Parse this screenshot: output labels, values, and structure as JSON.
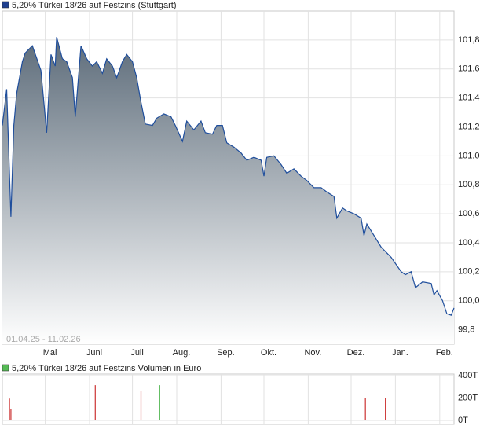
{
  "chart_data": [
    {
      "type": "line",
      "title": "5,20% Türkei 18/26 auf Festzins (Stuttgart)",
      "range_label": "01.04.25 - 11.02.26",
      "x": [
        "01.04.25",
        "04.04.25",
        "07.04.25",
        "09.04.25",
        "11.04.25",
        "15.04.25",
        "17.04.25",
        "22.04.25",
        "28.04.25",
        "02.05.25",
        "05.05.25",
        "08.05.25",
        "09.05.25",
        "13.05.25",
        "16.05.25",
        "20.05.25",
        "22.05.25",
        "26.05.25",
        "30.05.25",
        "03.06.25",
        "06.06.25",
        "10.06.25",
        "13.06.25",
        "17.06.25",
        "20.06.25",
        "24.06.25",
        "27.06.25",
        "01.07.25",
        "04.07.25",
        "07.07.25",
        "10.07.25",
        "15.07.25",
        "18.07.25",
        "23.07.25",
        "28.07.25",
        "31.07.25",
        "05.08.25",
        "08.08.25",
        "13.08.25",
        "18.08.25",
        "21.08.25",
        "26.08.25",
        "29.08.25",
        "02.09.25",
        "05.09.25",
        "10.09.25",
        "15.09.25",
        "19.09.25",
        "24.09.25",
        "29.09.25",
        "01.10.25",
        "03.10.25",
        "08.10.25",
        "13.10.25",
        "17.10.25",
        "22.10.25",
        "27.10.25",
        "31.10.25",
        "05.11.25",
        "10.11.25",
        "14.11.25",
        "19.11.25",
        "21.11.25",
        "25.11.25",
        "28.11.25",
        "03.12.25",
        "08.12.25",
        "10.12.25",
        "12.12.25",
        "17.12.25",
        "22.12.25",
        "29.12.25",
        "05.01.26",
        "08.01.26",
        "12.01.26",
        "15.01.26",
        "20.01.26",
        "26.01.26",
        "28.01.26",
        "30.01.26",
        "03.02.26",
        "06.02.26",
        "09.02.26",
        "11.02.26"
      ],
      "series": [
        {
          "color": "#1f4e9c",
          "area_color": "#5d6c7a",
          "values": [
            101.21,
            101.46,
            100.58,
            101.21,
            101.43,
            101.65,
            101.71,
            101.76,
            101.59,
            101.16,
            101.7,
            101.62,
            101.82,
            101.67,
            101.65,
            101.54,
            101.27,
            101.76,
            101.67,
            101.62,
            101.65,
            101.57,
            101.67,
            101.62,
            101.54,
            101.65,
            101.7,
            101.65,
            101.54,
            101.37,
            101.22,
            101.21,
            101.26,
            101.29,
            101.27,
            101.21,
            101.1,
            101.24,
            101.18,
            101.24,
            101.16,
            101.15,
            101.21,
            101.21,
            101.09,
            101.06,
            101.02,
            100.97,
            100.99,
            100.97,
            100.86,
            100.99,
            101.0,
            100.94,
            100.88,
            100.91,
            100.86,
            100.83,
            100.78,
            100.78,
            100.75,
            100.72,
            100.57,
            100.64,
            100.62,
            100.6,
            100.57,
            100.45,
            100.53,
            100.45,
            100.37,
            100.3,
            100.2,
            100.18,
            100.2,
            100.09,
            100.13,
            100.12,
            100.04,
            100.07,
            100.0,
            99.91,
            99.9,
            99.95
          ]
        }
      ],
      "xlim": [
        "01.04.25",
        "11.02.26"
      ],
      "xticks": [
        {
          "value": "01.05.25",
          "label": "Mai"
        },
        {
          "value": "01.06.25",
          "label": "Juni"
        },
        {
          "value": "01.07.25",
          "label": "Juli"
        },
        {
          "value": "01.08.25",
          "label": "Aug."
        },
        {
          "value": "01.09.25",
          "label": "Sep."
        },
        {
          "value": "01.10.25",
          "label": "Okt."
        },
        {
          "value": "01.11.25",
          "label": "Nov."
        },
        {
          "value": "01.12.25",
          "label": "Dez."
        },
        {
          "value": "01.01.26",
          "label": "Jan."
        },
        {
          "value": "01.02.26",
          "label": "Feb."
        }
      ],
      "ylim": [
        99.7,
        102.0
      ],
      "yticks": [
        {
          "value": 99.8,
          "label": "99,8"
        },
        {
          "value": 100.0,
          "label": "100,0"
        },
        {
          "value": 100.2,
          "label": "100,2"
        },
        {
          "value": 100.4,
          "label": "100,4"
        },
        {
          "value": 100.6,
          "label": "100,6"
        },
        {
          "value": 100.8,
          "label": "100,8"
        },
        {
          "value": 101.0,
          "label": "101,0"
        },
        {
          "value": 101.2,
          "label": "101,2"
        },
        {
          "value": 101.4,
          "label": "101,4"
        },
        {
          "value": 101.6,
          "label": "101,6"
        },
        {
          "value": 101.8,
          "label": "101,8"
        }
      ],
      "grid": true,
      "legend_color": "#1f3f8f"
    },
    {
      "type": "bar",
      "title": "5,20% Türkei 18/26 auf Festzins Volumen in Euro",
      "x": [
        "06.04.25",
        "07.04.25",
        "05.06.25",
        "07.07.25",
        "20.07.25",
        "11.12.25",
        "25.12.25"
      ],
      "values": [
        195,
        105,
        315,
        260,
        315,
        200,
        200
      ],
      "colors": [
        "#cc3333",
        "#cc3333",
        "#cc3333",
        "#cc3333",
        "#33aa33",
        "#cc3333",
        "#cc3333"
      ],
      "xlim": [
        "01.04.25",
        "11.02.26"
      ],
      "xticks": [
        "01.05.25",
        "01.06.25",
        "01.07.25",
        "01.08.25",
        "01.09.25",
        "01.10.25",
        "01.11.25",
        "01.12.25",
        "01.01.26",
        "01.02.26"
      ],
      "ylim": [
        0,
        400
      ],
      "yticks": [
        {
          "value": 0,
          "label": "0T"
        },
        {
          "value": 200,
          "label": "200T"
        },
        {
          "value": 400,
          "label": "400T"
        }
      ],
      "grid": true,
      "legend_color": "#55bb55"
    }
  ]
}
